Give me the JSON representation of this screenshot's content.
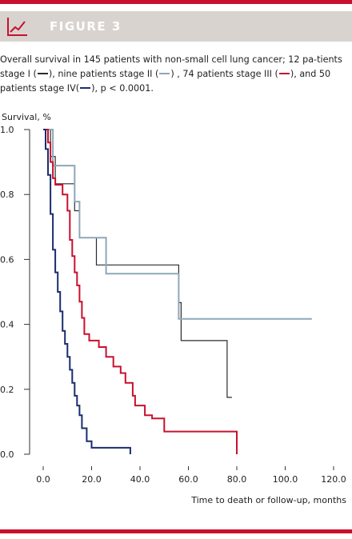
{
  "figure": {
    "label": "FIGURE 3",
    "accent_color": "#c8102e",
    "icon": "line-chart-icon"
  },
  "caption": {
    "part1": "Overall survival in 145 patients with non-small cell lung cancer; 12 pa-tients stage I (",
    "part2": "), nine patients stage II (",
    "part3": ") , 74 patients stage III (",
    "part4": "), and 50 patients stage IV(",
    "part5": "), p < 0.0001."
  },
  "chart_data": {
    "type": "line",
    "step": true,
    "xlabel": "Time to death or follow-up, months",
    "ylabel": "Survival, %",
    "xlim": [
      -5,
      120
    ],
    "ylim": [
      0,
      1.0
    ],
    "x_ticks": [
      "0.0",
      "20.0",
      "40.0",
      "60.0",
      "80.0",
      "100.0",
      "120.0"
    ],
    "x_tick_values": [
      0,
      20,
      40,
      60,
      80,
      100,
      120
    ],
    "y_ticks": [
      "0.0",
      "0.2",
      "0.4",
      "0.6",
      "0.8",
      "1.0"
    ],
    "y_tick_values": [
      0,
      0.2,
      0.4,
      0.6,
      0.8,
      1.0
    ],
    "grid": false,
    "series": [
      {
        "stage": "I",
        "color": "#2b2b2b",
        "points": [
          [
            0,
            1.0
          ],
          [
            3,
            1.0
          ],
          [
            3,
            0.917
          ],
          [
            5,
            0.917
          ],
          [
            5,
            0.833
          ],
          [
            13,
            0.833
          ],
          [
            13,
            0.75
          ],
          [
            15,
            0.75
          ],
          [
            15,
            0.667
          ],
          [
            22,
            0.667
          ],
          [
            22,
            0.583
          ],
          [
            56,
            0.583
          ],
          [
            56,
            0.467
          ],
          [
            57,
            0.467
          ],
          [
            57,
            0.35
          ],
          [
            76,
            0.35
          ],
          [
            76,
            0.175
          ],
          [
            78,
            0.175
          ]
        ]
      },
      {
        "stage": "II",
        "color": "#8fa7b8",
        "points": [
          [
            0,
            1.0
          ],
          [
            4,
            1.0
          ],
          [
            4,
            0.889
          ],
          [
            13,
            0.889
          ],
          [
            13,
            0.778
          ],
          [
            15,
            0.778
          ],
          [
            15,
            0.667
          ],
          [
            26,
            0.667
          ],
          [
            26,
            0.556
          ],
          [
            56,
            0.556
          ],
          [
            56,
            0.417
          ],
          [
            111,
            0.417
          ]
        ]
      },
      {
        "stage": "III",
        "color": "#c8102e",
        "points": [
          [
            0,
            1.0
          ],
          [
            2,
            1.0
          ],
          [
            2,
            0.96
          ],
          [
            3,
            0.96
          ],
          [
            3,
            0.9
          ],
          [
            4,
            0.9
          ],
          [
            4,
            0.85
          ],
          [
            5,
            0.85
          ],
          [
            5,
            0.83
          ],
          [
            8,
            0.83
          ],
          [
            8,
            0.8
          ],
          [
            10,
            0.8
          ],
          [
            10,
            0.75
          ],
          [
            11,
            0.75
          ],
          [
            11,
            0.66
          ],
          [
            12,
            0.66
          ],
          [
            12,
            0.61
          ],
          [
            13,
            0.61
          ],
          [
            13,
            0.56
          ],
          [
            14,
            0.56
          ],
          [
            14,
            0.52
          ],
          [
            15,
            0.52
          ],
          [
            15,
            0.47
          ],
          [
            16,
            0.47
          ],
          [
            16,
            0.42
          ],
          [
            17,
            0.42
          ],
          [
            17,
            0.37
          ],
          [
            19,
            0.37
          ],
          [
            19,
            0.35
          ],
          [
            23,
            0.35
          ],
          [
            23,
            0.33
          ],
          [
            26,
            0.33
          ],
          [
            26,
            0.3
          ],
          [
            29,
            0.3
          ],
          [
            29,
            0.27
          ],
          [
            32,
            0.27
          ],
          [
            32,
            0.25
          ],
          [
            34,
            0.25
          ],
          [
            34,
            0.22
          ],
          [
            37,
            0.22
          ],
          [
            37,
            0.18
          ],
          [
            38,
            0.18
          ],
          [
            38,
            0.15
          ],
          [
            42,
            0.15
          ],
          [
            42,
            0.12
          ],
          [
            45,
            0.12
          ],
          [
            45,
            0.11
          ],
          [
            50,
            0.11
          ],
          [
            50,
            0.07
          ],
          [
            80,
            0.07
          ],
          [
            80,
            0.0
          ]
        ]
      },
      {
        "stage": "IV",
        "color": "#1a2e6e",
        "points": [
          [
            0,
            1.0
          ],
          [
            1,
            1.0
          ],
          [
            1,
            0.94
          ],
          [
            2,
            0.94
          ],
          [
            2,
            0.86
          ],
          [
            3,
            0.86
          ],
          [
            3,
            0.74
          ],
          [
            4,
            0.74
          ],
          [
            4,
            0.63
          ],
          [
            5,
            0.63
          ],
          [
            5,
            0.56
          ],
          [
            6,
            0.56
          ],
          [
            6,
            0.5
          ],
          [
            7,
            0.5
          ],
          [
            7,
            0.44
          ],
          [
            8,
            0.44
          ],
          [
            8,
            0.38
          ],
          [
            9,
            0.38
          ],
          [
            9,
            0.34
          ],
          [
            10,
            0.34
          ],
          [
            10,
            0.3
          ],
          [
            11,
            0.3
          ],
          [
            11,
            0.26
          ],
          [
            12,
            0.26
          ],
          [
            12,
            0.22
          ],
          [
            13,
            0.22
          ],
          [
            13,
            0.18
          ],
          [
            14,
            0.18
          ],
          [
            14,
            0.15
          ],
          [
            15,
            0.15
          ],
          [
            15,
            0.12
          ],
          [
            16,
            0.12
          ],
          [
            16,
            0.08
          ],
          [
            18,
            0.08
          ],
          [
            18,
            0.04
          ],
          [
            20,
            0.04
          ],
          [
            20,
            0.02
          ],
          [
            36,
            0.02
          ],
          [
            36,
            0.0
          ]
        ]
      }
    ]
  }
}
